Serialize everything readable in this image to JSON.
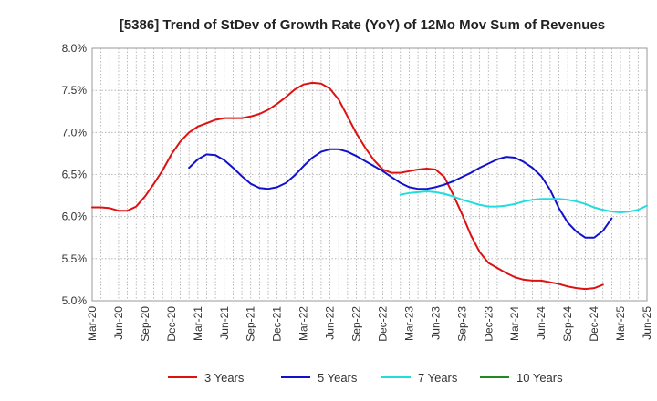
{
  "chart_data": {
    "type": "line",
    "title": "[5386]  Trend of StDev of Growth Rate (YoY) of 12Mo Mov Sum of Revenues",
    "xlabel": "",
    "ylabel": "",
    "ylim": [
      5.0,
      8.0
    ],
    "y_ticks": [
      "5.0%",
      "5.5%",
      "6.0%",
      "6.5%",
      "7.0%",
      "7.5%",
      "8.0%"
    ],
    "x_ticks": [
      "Mar-20",
      "Jun-20",
      "Sep-20",
      "Dec-20",
      "Mar-21",
      "Jun-21",
      "Sep-21",
      "Dec-21",
      "Mar-22",
      "Jun-22",
      "Sep-22",
      "Dec-22",
      "Mar-23",
      "Jun-23",
      "Sep-23",
      "Dec-23",
      "Mar-24",
      "Jun-24",
      "Sep-24",
      "Dec-24",
      "Mar-25",
      "Jun-25"
    ],
    "x_start": "Mar-20",
    "months_total": 63,
    "grid": true,
    "legend_position": "bottom",
    "series": [
      {
        "name": "3 Years",
        "color": "#dd1111",
        "start_index": 0,
        "values": [
          6.11,
          6.11,
          6.1,
          6.07,
          6.07,
          6.12,
          6.24,
          6.39,
          6.55,
          6.74,
          6.89,
          7.0,
          7.07,
          7.11,
          7.15,
          7.17,
          7.17,
          7.17,
          7.19,
          7.22,
          7.27,
          7.34,
          7.42,
          7.51,
          7.57,
          7.59,
          7.58,
          7.52,
          7.39,
          7.19,
          6.99,
          6.82,
          6.67,
          6.56,
          6.52,
          6.52,
          6.54,
          6.56,
          6.57,
          6.56,
          6.47,
          6.26,
          6.03,
          5.78,
          5.58,
          5.45,
          5.39,
          5.33,
          5.28,
          5.25,
          5.24,
          5.24,
          5.22,
          5.2,
          5.17,
          5.15,
          5.14,
          5.15,
          5.19
        ]
      },
      {
        "name": "5 Years",
        "color": "#1111cc",
        "start_index": 11,
        "values": [
          6.58,
          6.68,
          6.74,
          6.73,
          6.67,
          6.58,
          6.48,
          6.39,
          6.34,
          6.33,
          6.35,
          6.4,
          6.49,
          6.6,
          6.7,
          6.77,
          6.8,
          6.8,
          6.77,
          6.72,
          6.66,
          6.6,
          6.54,
          6.47,
          6.4,
          6.35,
          6.33,
          6.33,
          6.35,
          6.38,
          6.42,
          6.47,
          6.52,
          6.58,
          6.63,
          6.68,
          6.71,
          6.7,
          6.65,
          6.58,
          6.48,
          6.32,
          6.1,
          5.93,
          5.82,
          5.75,
          5.75,
          5.83,
          5.98
        ]
      },
      {
        "name": "7 Years",
        "color": "#22dddd",
        "start_index": 35,
        "values": [
          6.26,
          6.28,
          6.29,
          6.3,
          6.29,
          6.27,
          6.24,
          6.2,
          6.17,
          6.14,
          6.12,
          6.12,
          6.13,
          6.15,
          6.18,
          6.2,
          6.21,
          6.21,
          6.21,
          6.2,
          6.18,
          6.15,
          6.11,
          6.08,
          6.06,
          6.05,
          6.06,
          6.08,
          6.13
        ]
      },
      {
        "name": "10 Years",
        "color": "#228822",
        "start_index": 0,
        "values": []
      }
    ]
  }
}
